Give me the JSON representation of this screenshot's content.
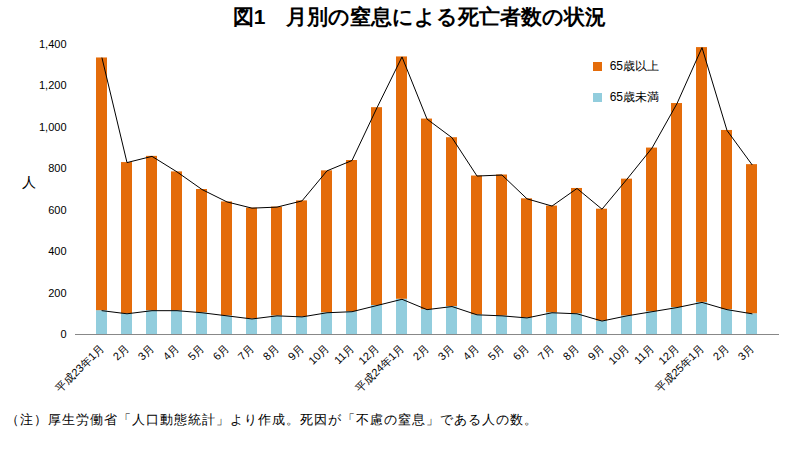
{
  "chart_data": {
    "type": "bar",
    "title": "図1　月別の窒息による死亡者数の状況",
    "caption": "（注）厚生労働省「人口動態統計」より作成。死因が「不慮の窒息」である人の数。",
    "y_label": "人",
    "stacked": true,
    "legend": "top-right",
    "categories": [
      "平成23年1月",
      "2月",
      "3月",
      "4月",
      "5月",
      "6月",
      "7月",
      "8月",
      "9月",
      "10月",
      "11月",
      "12月",
      "平成24年1月",
      "2月",
      "3月",
      "4月",
      "5月",
      "6月",
      "7月",
      "8月",
      "9月",
      "10月",
      "11月",
      "12月",
      "平成25年1月",
      "2月",
      "3月"
    ],
    "series": [
      {
        "name": "65歳未満",
        "color": "#92CDDD",
        "values": [
          115,
          100,
          115,
          115,
          105,
          90,
          75,
          90,
          85,
          105,
          110,
          140,
          170,
          120,
          135,
          95,
          90,
          80,
          105,
          100,
          65,
          90,
          110,
          130,
          155,
          120,
          100
        ]
      },
      {
        "name": "65歳以上",
        "color": "#E46C0A",
        "values": [
          1220,
          730,
          745,
          670,
          595,
          550,
          535,
          525,
          560,
          685,
          730,
          955,
          1170,
          920,
          815,
          670,
          680,
          575,
          515,
          605,
          540,
          660,
          790,
          985,
          1230,
          865,
          720
        ]
      }
    ],
    "ylim": [
      0,
      1400
    ],
    "yticks": [
      0,
      200,
      400,
      600,
      800,
      {
        "value": 1000,
        "label": "1,000"
      },
      {
        "value": 1200,
        "label": "1,200"
      },
      {
        "value": 1400,
        "label": "1,400"
      }
    ]
  }
}
